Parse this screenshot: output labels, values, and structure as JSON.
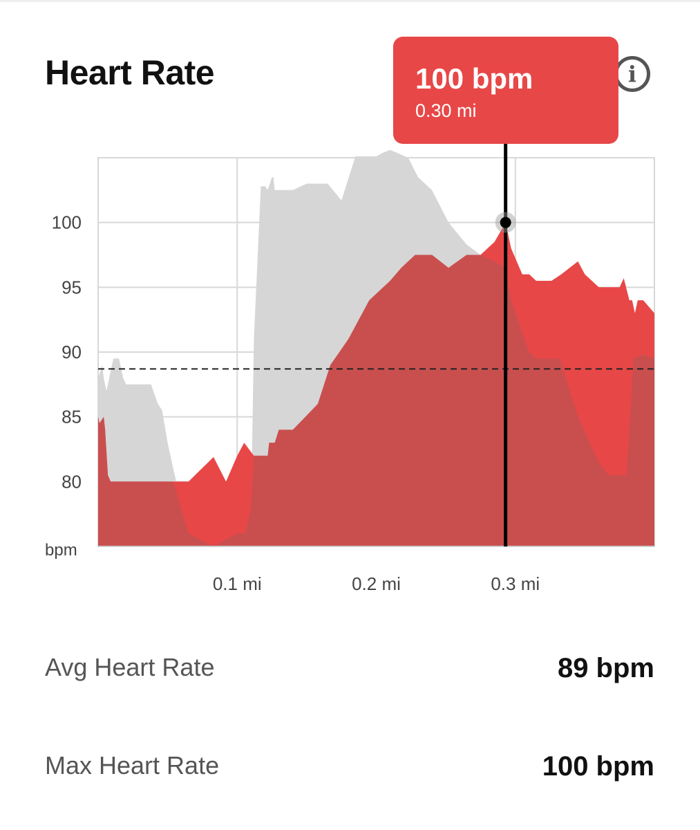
{
  "title": "Heart Rate",
  "info_icon": "info-icon",
  "colors": {
    "accent": "#e84747",
    "segment_fill": "#c94f4f",
    "elevation": "#d6d6d6",
    "grid": "#d8d8d8"
  },
  "tooltip": {
    "value": "100 bpm",
    "distance": "0.30 mi"
  },
  "chart_data": {
    "type": "area",
    "xlim": [
      0,
      0.4
    ],
    "ylim": [
      75,
      105
    ],
    "ylabel": "bpm",
    "y_ticks": [
      {
        "value": 100,
        "label": "100"
      },
      {
        "value": 95,
        "label": "95"
      },
      {
        "value": 90,
        "label": "90"
      },
      {
        "value": 85,
        "label": "85"
      },
      {
        "value": 80,
        "label": "80"
      }
    ],
    "x_ticks": [
      {
        "value": 0.1,
        "label": "0.1 mi"
      },
      {
        "value": 0.2,
        "label": "0.2 mi"
      },
      {
        "value": 0.3,
        "label": "0.3 mi"
      }
    ],
    "grid": true,
    "average": 88.7,
    "selected": {
      "x": 0.293,
      "y": 100
    },
    "heart_rate": {
      "x": [
        0,
        0.001,
        0.004,
        0.005,
        0.007,
        0.009,
        0.05,
        0.052,
        0.065,
        0.083,
        0.092,
        0.1,
        0.105,
        0.112,
        0.122,
        0.123,
        0.127,
        0.13,
        0.14,
        0.149,
        0.158,
        0.167,
        0.18,
        0.195,
        0.21,
        0.218,
        0.228,
        0.24,
        0.252,
        0.265,
        0.275,
        0.28,
        0.285,
        0.293,
        0.297,
        0.305,
        0.31,
        0.315,
        0.326,
        0.333,
        0.345,
        0.35,
        0.36,
        0.368,
        0.371,
        0.375,
        0.378,
        0.382,
        0.384,
        0.386,
        0.388,
        0.392,
        0.4
      ],
      "y": [
        85,
        84.5,
        85,
        84,
        80.5,
        80,
        80,
        80,
        80,
        81.9,
        80,
        82,
        83,
        82,
        82,
        83,
        83,
        84,
        84,
        85,
        86,
        89,
        91,
        94,
        95.5,
        96.5,
        97.5,
        97.5,
        96.5,
        97.5,
        97.5,
        98,
        98.5,
        100,
        98,
        96,
        96,
        95.5,
        95.5,
        96,
        97,
        96,
        95,
        95,
        95,
        95,
        95.7,
        94,
        94,
        93,
        94,
        94,
        93
      ]
    },
    "elevation": {
      "x": [
        0,
        0.003,
        0.004,
        0.006,
        0.008,
        0.011,
        0.013,
        0.015,
        0.016,
        0.018,
        0.02,
        0.022,
        0.033,
        0.038,
        0.043,
        0.046,
        0.05,
        0.054,
        0.065,
        0.083,
        0.1,
        0.106,
        0.11,
        0.112,
        0.117,
        0.12,
        0.122,
        0.125,
        0.126,
        0.127,
        0.13,
        0.14,
        0.15,
        0.165,
        0.175,
        0.185,
        0.2,
        0.205,
        0.21,
        0.223,
        0.23,
        0.24,
        0.252,
        0.265,
        0.275,
        0.285,
        0.293,
        0.297,
        0.305,
        0.31,
        0.315,
        0.326,
        0.332,
        0.345,
        0.36,
        0.367,
        0.373,
        0.376,
        0.38,
        0.385,
        0.392,
        0.4
      ],
      "y": [
        88,
        89,
        88,
        87,
        88,
        89.5,
        89.5,
        89.5,
        89,
        88,
        87.5,
        87.5,
        87.5,
        87.5,
        86,
        85.5,
        83,
        81,
        76,
        75,
        76,
        76,
        78,
        91,
        102.8,
        102.8,
        102.5,
        103.5,
        103.5,
        102.5,
        102.5,
        102.5,
        103,
        103,
        101.7,
        105.1,
        105.1,
        105.4,
        105.6,
        105,
        103.5,
        102.5,
        100,
        98.3,
        97.5,
        97,
        96.5,
        94,
        91.5,
        90,
        89.5,
        89.5,
        89.5,
        85,
        81.5,
        80.5,
        80.5,
        80.5,
        80.5,
        89.5,
        89.8,
        89.5
      ]
    }
  },
  "stats": {
    "avg": {
      "label": "Avg Heart Rate",
      "value": "89 bpm"
    },
    "max": {
      "label": "Max Heart Rate",
      "value": "100 bpm"
    }
  }
}
